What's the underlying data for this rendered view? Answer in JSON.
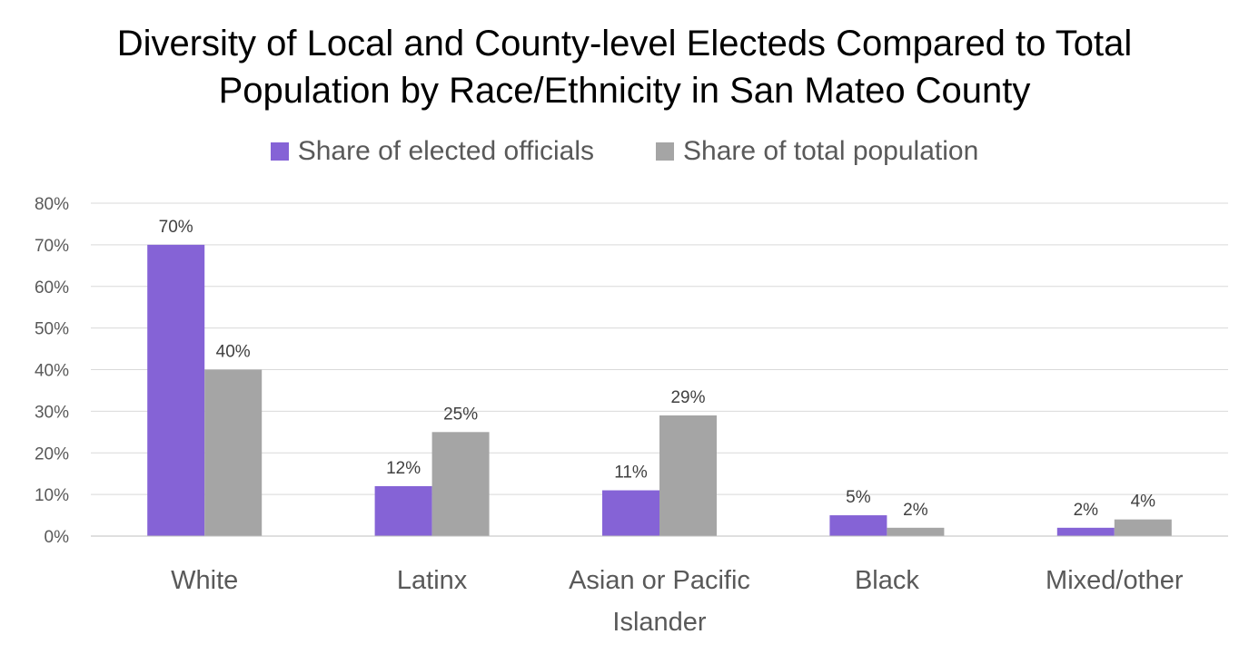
{
  "chart_data": {
    "type": "bar",
    "title_lines": [
      "Diversity of Local and County-level Electeds Compared to Total",
      "Population by Race/Ethnicity in San Mateo County"
    ],
    "xlabel": "",
    "ylabel": "",
    "categories": [
      [
        "White"
      ],
      [
        "Latinx"
      ],
      [
        "Asian or Pacific",
        "Islander"
      ],
      [
        "Black"
      ],
      [
        "Mixed/other"
      ]
    ],
    "series": [
      {
        "name": "Share of elected officials",
        "color": "#8563D6",
        "values": [
          70,
          12,
          11,
          5,
          2
        ],
        "labels": [
          "70%",
          "12%",
          "11%",
          "5%",
          "2%"
        ]
      },
      {
        "name": "Share of total population",
        "color": "#A5A5A5",
        "values": [
          40,
          25,
          29,
          2,
          4
        ],
        "labels": [
          "40%",
          "25%",
          "29%",
          "2%",
          "4%"
        ]
      }
    ],
    "ylim": [
      0,
      80
    ],
    "yticks": [
      0,
      10,
      20,
      30,
      40,
      50,
      60,
      70,
      80
    ],
    "ytick_labels": [
      "0%",
      "10%",
      "20%",
      "30%",
      "40%",
      "50%",
      "60%",
      "70%",
      "80%"
    ],
    "grid": true,
    "gridline_color": "#D9D9D9",
    "legend_position": "top"
  }
}
